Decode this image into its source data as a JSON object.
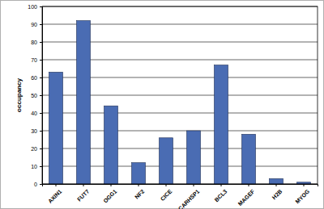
{
  "chart_data": {
    "type": "bar",
    "y_label": "occupancy",
    "categories": [
      "AXIN1",
      "FUT7",
      "OGG1",
      "NF2",
      "CICE",
      "CARHSP1",
      "BCL3",
      "MAGEF",
      "H2B",
      "MYOG"
    ],
    "values": [
      63,
      92,
      44,
      12,
      26,
      30,
      67,
      28,
      3,
      1
    ],
    "color": "#4a6cb3",
    "ylim": [
      0,
      100
    ],
    "yticks": [
      0,
      10,
      20,
      30,
      40,
      50,
      60,
      70,
      80,
      90,
      100
    ],
    "grid": true
  }
}
